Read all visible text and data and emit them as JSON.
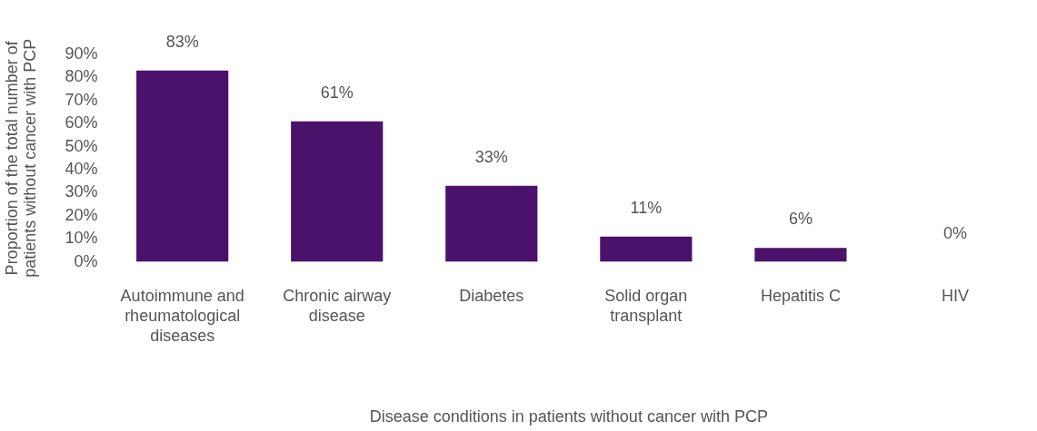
{
  "chart_data": {
    "type": "bar",
    "xlabel": "Disease conditions in patients without cancer with PCP",
    "ylabel": "Proportion of the total number of patients without cancer with PCP",
    "categories": [
      "Autoimmune and rheumatological diseases",
      "Chronic airway disease",
      "Diabetes",
      "Solid organ transplant",
      "Hepatitis C",
      "HIV"
    ],
    "values": [
      83,
      61,
      33,
      11,
      6,
      0
    ],
    "color": "#4a126b",
    "data_labels": true,
    "value_labels": [
      "83%",
      "61%",
      "33%",
      "11%",
      "6%",
      "0%"
    ],
    "ylim": [
      0,
      90
    ],
    "yticks": [
      {
        "value": 0,
        "label": "0%"
      },
      {
        "value": 10,
        "label": "10%"
      },
      {
        "value": 20,
        "label": "20%"
      },
      {
        "value": 30,
        "label": "30%"
      },
      {
        "value": 40,
        "label": "40%"
      },
      {
        "value": 50,
        "label": "50%"
      },
      {
        "value": 60,
        "label": "60%"
      },
      {
        "value": 70,
        "label": "70%"
      },
      {
        "value": 80,
        "label": "80%"
      },
      {
        "value": 90,
        "label": "90%"
      }
    ],
    "grid": false,
    "legend": false
  }
}
